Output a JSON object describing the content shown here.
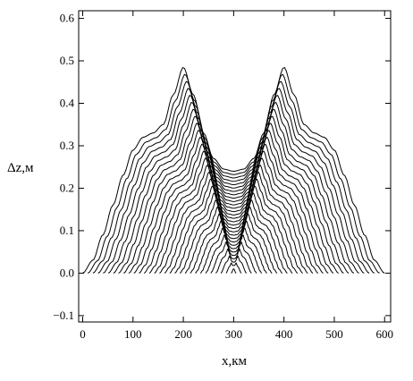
{
  "chart_data": {
    "type": "line",
    "title": "",
    "xlabel": "x,км",
    "ylabel": "Δz,м",
    "xlim": [
      -8,
      612
    ],
    "ylim": [
      -0.115,
      0.618
    ],
    "xticks": [
      0,
      100,
      200,
      300,
      400,
      500,
      600
    ],
    "xtick_labels": [
      "0",
      "100",
      "200",
      "300",
      "400",
      "500",
      "600"
    ],
    "yticks": [
      -0.1,
      0.0,
      0.1,
      0.2,
      0.3,
      0.4,
      0.5,
      0.6
    ],
    "ytick_labels": [
      "−0.1",
      "0.0",
      "0.1",
      "0.2",
      "0.3",
      "0.4",
      "0.5",
      "0.6"
    ],
    "grid": false,
    "line_color": "#000000",
    "family": {
      "count": 30,
      "x_center": 300,
      "outer_curve": {
        "x": [
          0,
          20,
          40,
          60,
          80,
          100,
          120,
          140,
          160,
          180,
          200,
          220,
          240,
          260,
          280,
          300,
          320,
          340,
          360,
          380,
          400,
          420,
          440,
          460,
          480,
          500,
          520,
          540,
          560,
          580,
          600
        ],
        "y": [
          0.0,
          0.03,
          0.09,
          0.16,
          0.23,
          0.29,
          0.32,
          0.33,
          0.35,
          0.42,
          0.485,
          0.42,
          0.33,
          0.27,
          0.245,
          0.24,
          0.245,
          0.27,
          0.33,
          0.42,
          0.485,
          0.42,
          0.35,
          0.33,
          0.32,
          0.29,
          0.23,
          0.16,
          0.09,
          0.03,
          0.0
        ]
      },
      "inner_curve": {
        "x": [
          295,
          300,
          305
        ],
        "y": [
          0.0,
          0.01,
          0.0
        ]
      }
    }
  }
}
